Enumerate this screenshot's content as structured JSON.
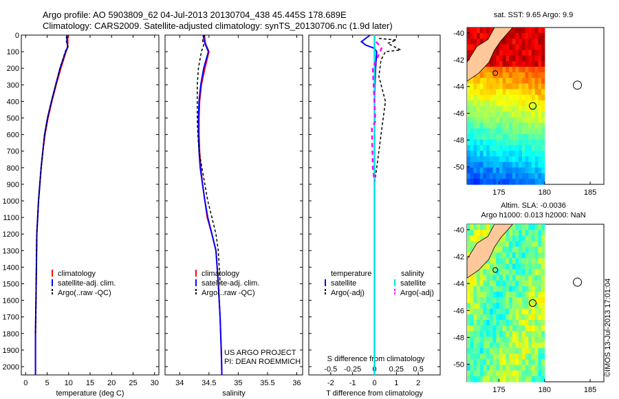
{
  "header": {
    "line1": "Argo profile: AO 5903809_62 04-Jul-2013 20130704_438 45.445S 178.689E",
    "line2": "Climatology: CARS2009. Satellite-adjusted climatology: synTS_20130706.nc (1.9d later)"
  },
  "stamp": "©IMOS 13-Jul-2013 17:01:04",
  "colors": {
    "climatology": "#ff0000",
    "satellite": "#0000ff",
    "argo": "#000000",
    "sal_satellite": "#00e0e0",
    "sal_argo": "#ff00ff",
    "land": "#ffc89a"
  },
  "depth_ticks": [
    "0",
    "100",
    "200",
    "300",
    "400",
    "500",
    "600",
    "700",
    "800",
    "900",
    "1000",
    "1100",
    "1200",
    "1300",
    "1400",
    "1500",
    "1600",
    "1700",
    "1800",
    "1900",
    "2000"
  ],
  "chart_data": [
    {
      "type": "line",
      "xlabel": "temperature (deg C)",
      "xlim": [
        -1,
        31
      ],
      "ylim": [
        2050,
        0
      ],
      "xticks": [
        "0",
        "5",
        "10",
        "15",
        "20",
        "25",
        "30"
      ],
      "legend": [
        "climatology",
        "satellite-adj. clim.",
        "Argo(..raw -QC)"
      ],
      "series": [
        {
          "name": "climatology",
          "x": [
            9.8,
            9.8,
            9.7,
            9.4,
            8.2,
            7.1,
            6.1,
            5.2,
            4.5,
            4.0,
            3.6,
            3.3,
            3.0,
            2.8,
            2.6,
            2.5,
            2.4,
            2.3,
            2.3
          ],
          "y": [
            0,
            50,
            80,
            100,
            200,
            300,
            400,
            500,
            600,
            700,
            800,
            900,
            1000,
            1100,
            1200,
            1400,
            1600,
            1800,
            2050
          ]
        },
        {
          "name": "satellite-adj. clim.",
          "x": [
            9.6,
            9.6,
            9.8,
            9.3,
            8.0,
            7.0,
            6.0,
            5.1,
            4.4,
            4.0,
            3.6,
            3.3,
            3.0,
            2.8,
            2.6,
            2.5,
            2.4,
            2.3,
            2.3
          ],
          "y": [
            0,
            40,
            70,
            100,
            200,
            300,
            400,
            500,
            600,
            700,
            800,
            900,
            1000,
            1100,
            1200,
            1400,
            1600,
            1800,
            2050
          ]
        },
        {
          "name": "Argo(..raw -QC)",
          "x": [
            9.5,
            9.5,
            9.9,
            9.2,
            8.0,
            7.0,
            6.0,
            5.1,
            4.4,
            4.0,
            3.6,
            3.3,
            3.0,
            2.8,
            2.6,
            2.5,
            2.4,
            2.3
          ],
          "y": [
            5,
            40,
            70,
            100,
            200,
            300,
            400,
            500,
            600,
            700,
            800,
            900,
            1000,
            1100,
            1200,
            1400,
            1600,
            1800
          ]
        }
      ]
    },
    {
      "type": "line",
      "xlabel": "salinity",
      "xlim": [
        33.75,
        36.1
      ],
      "ylim": [
        2050,
        0
      ],
      "xticks": [
        "34",
        "34.5",
        "35",
        "35.5",
        "36"
      ],
      "legend": [
        "climatology",
        "satellite-adj. clim.",
        "Argo(..raw -QC)"
      ],
      "annotation": [
        "US ARGO PROJECT",
        "PI: DEAN ROEMMICH"
      ],
      "series": [
        {
          "name": "climatology",
          "x": [
            34.42,
            34.44,
            34.5,
            34.43,
            34.37,
            34.34,
            34.33,
            34.33,
            34.34,
            34.36,
            34.39,
            34.43,
            34.47,
            34.55,
            34.62,
            34.66,
            34.69,
            34.71,
            34.72
          ],
          "y": [
            0,
            50,
            100,
            200,
            300,
            400,
            500,
            600,
            700,
            800,
            900,
            1000,
            1100,
            1200,
            1300,
            1500,
            1700,
            1900,
            2050
          ]
        },
        {
          "name": "satellite-adj. clim.",
          "x": [
            34.4,
            34.43,
            34.49,
            34.41,
            34.36,
            34.33,
            34.32,
            34.32,
            34.33,
            34.35,
            34.39,
            34.43,
            34.48,
            34.55,
            34.62,
            34.66,
            34.69,
            34.71,
            34.72
          ],
          "y": [
            0,
            50,
            100,
            200,
            300,
            400,
            500,
            600,
            700,
            800,
            900,
            1000,
            1100,
            1200,
            1300,
            1500,
            1700,
            1900,
            2050
          ]
        },
        {
          "name": "Argo(..raw -QC)",
          "x": [
            34.43,
            34.39,
            34.41,
            34.37,
            34.32,
            34.3,
            34.3,
            34.3,
            34.31,
            34.33,
            34.38,
            34.43,
            34.48,
            34.55,
            34.62,
            34.66,
            34.69
          ],
          "y": [
            0,
            30,
            60,
            100,
            200,
            300,
            400,
            500,
            600,
            700,
            800,
            900,
            1000,
            1100,
            1200,
            1300,
            1500
          ]
        }
      ]
    },
    {
      "type": "line",
      "xlabel": "T difference from climatology",
      "top_label": "S difference from climatology",
      "xlim": [
        -3,
        3
      ],
      "ylim": [
        2050,
        0
      ],
      "xticks": [
        "-2",
        "-1",
        "0",
        "1",
        "2"
      ],
      "top_ticks": [
        "-0.5",
        "-0.25",
        "0",
        "0.25",
        "0.5"
      ],
      "legend_left_title": "temperature",
      "legend_right_title": "salinity",
      "legend_left": [
        "satellite",
        "Argo(-adj)"
      ],
      "legend_right": [
        "satellite",
        "Argo(-adj)"
      ],
      "series": [
        {
          "name": "satellite",
          "group": "temperature",
          "x": [
            -0.2,
            -0.6,
            -0.4,
            0.0,
            0.1,
            0.05,
            0.0,
            0.0,
            0.0,
            0.0,
            0.0
          ],
          "y": [
            0,
            40,
            60,
            80,
            100,
            200,
            400,
            800,
            1200,
            1600,
            2050
          ]
        },
        {
          "name": "Argo(-adj)",
          "group": "temperature",
          "x": [
            0.2,
            1.0,
            0.6,
            1.2,
            0.5,
            0.3,
            0.2,
            0.5,
            0.4,
            0.3,
            0.2,
            0.1,
            0.0,
            0.0,
            0.0
          ],
          "y": [
            20,
            30,
            50,
            90,
            100,
            150,
            250,
            400,
            500,
            600,
            700,
            800,
            900,
            1200,
            1900
          ]
        },
        {
          "name": "satellite",
          "group": "salinity",
          "x": [
            0.0,
            0.0,
            0.0,
            0.0,
            0.0,
            0.0,
            0.0
          ],
          "y": [
            0,
            100,
            300,
            700,
            1200,
            1600,
            2050
          ]
        },
        {
          "name": "Argo(-adj)",
          "group": "salinity",
          "x": [
            0.02,
            0.08,
            -0.02,
            0.01,
            -0.03,
            -0.02,
            0.0
          ],
          "y": [
            40,
            80,
            200,
            520,
            560,
            800,
            880
          ]
        }
      ]
    },
    {
      "type": "heatmap",
      "title": "sat. SST: 9.65 Argo: 9.9",
      "xticks": [
        "175",
        "180",
        "185"
      ],
      "yticks": [
        "-40",
        "-42",
        "-44",
        "-46",
        "-48",
        "-50"
      ],
      "xlim": [
        171.5,
        186.5
      ],
      "ylim": [
        -51.3,
        -39.6
      ],
      "argo_position": [
        178.7,
        -45.45
      ]
    },
    {
      "type": "heatmap",
      "title": "Altim. SLA: -0.0036",
      "subtitle": "Argo h1000: 0.013 h2000: NaN",
      "xticks": [
        "175",
        "180",
        "185"
      ],
      "yticks": [
        "-40",
        "-42",
        "-44",
        "-46",
        "-48",
        "-50"
      ],
      "xlim": [
        171.5,
        186.5
      ],
      "ylim": [
        -51.3,
        -39.6
      ],
      "argo_position": [
        178.7,
        -45.45
      ]
    }
  ]
}
